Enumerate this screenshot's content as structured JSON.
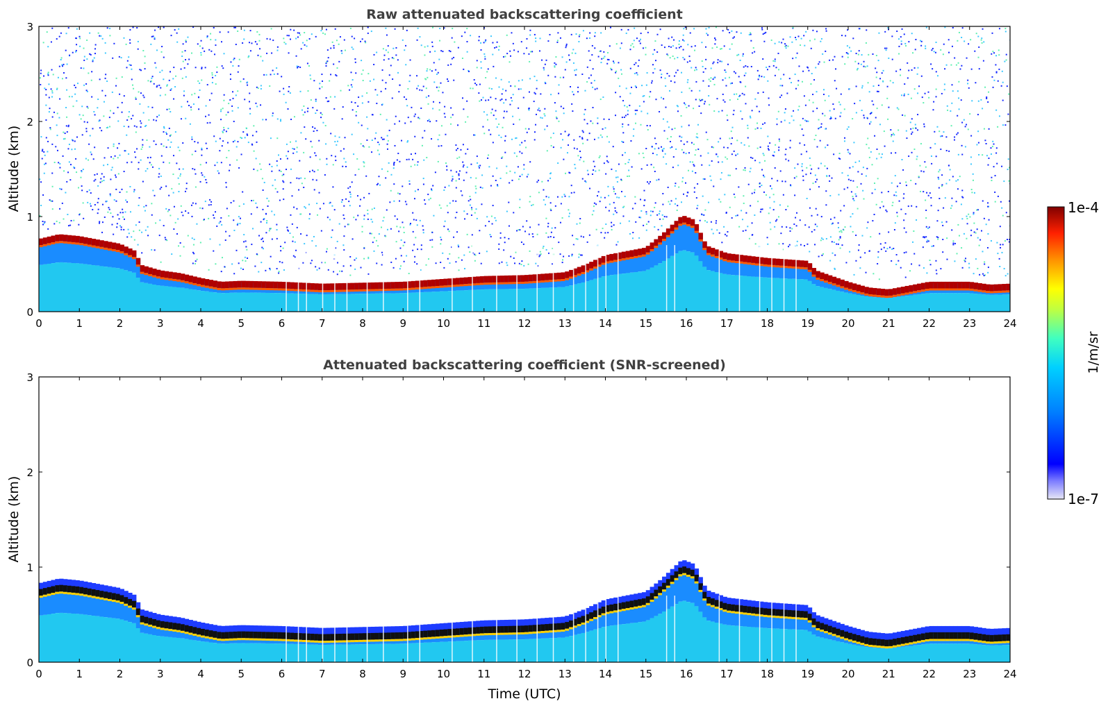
{
  "chart_data": [
    {
      "type": "heatmap",
      "title": "Raw attenuated backscattering coefficient",
      "xlabel": "",
      "ylabel": "Altitude (km)",
      "xlim": [
        0,
        24
      ],
      "ylim": [
        0,
        3
      ],
      "xticks": [
        "0",
        "1",
        "2",
        "3",
        "4",
        "5",
        "6",
        "7",
        "8",
        "9",
        "10",
        "11",
        "12",
        "13",
        "14",
        "15",
        "16",
        "17",
        "18",
        "19",
        "20",
        "21",
        "22",
        "23",
        "24"
      ],
      "yticks": [
        "0",
        "1",
        "2",
        "3"
      ],
      "screened": false,
      "layer_top_km": [
        [
          0,
          0.75
        ],
        [
          0.5,
          0.8
        ],
        [
          1,
          0.78
        ],
        [
          1.5,
          0.74
        ],
        [
          2,
          0.7
        ],
        [
          2.4,
          0.62
        ],
        [
          2.5,
          0.48
        ],
        [
          3,
          0.42
        ],
        [
          3.5,
          0.39
        ],
        [
          4,
          0.34
        ],
        [
          4.5,
          0.3
        ],
        [
          5,
          0.31
        ],
        [
          6,
          0.3
        ],
        [
          7,
          0.28
        ],
        [
          8,
          0.29
        ],
        [
          9,
          0.3
        ],
        [
          10,
          0.33
        ],
        [
          11,
          0.36
        ],
        [
          12,
          0.37
        ],
        [
          13,
          0.4
        ],
        [
          13.5,
          0.48
        ],
        [
          14,
          0.58
        ],
        [
          14.5,
          0.62
        ],
        [
          15,
          0.66
        ],
        [
          15.4,
          0.8
        ],
        [
          15.9,
          1.0
        ],
        [
          16.2,
          0.95
        ],
        [
          16.5,
          0.68
        ],
        [
          17,
          0.6
        ],
        [
          18,
          0.55
        ],
        [
          19,
          0.52
        ],
        [
          19.2,
          0.42
        ],
        [
          20,
          0.3
        ],
        [
          20.5,
          0.24
        ],
        [
          21,
          0.22
        ],
        [
          21.5,
          0.26
        ],
        [
          22,
          0.3
        ],
        [
          23,
          0.3
        ],
        [
          23.5,
          0.27
        ],
        [
          24,
          0.28
        ]
      ]
    },
    {
      "type": "heatmap",
      "title": "Attenuated backscattering coefficient (SNR-screened)",
      "xlabel": "Time (UTC)",
      "ylabel": "Altitude (km)",
      "xlim": [
        0,
        24
      ],
      "ylim": [
        0,
        3
      ],
      "xticks": [
        "0",
        "1",
        "2",
        "3",
        "4",
        "5",
        "6",
        "7",
        "8",
        "9",
        "10",
        "11",
        "12",
        "13",
        "14",
        "15",
        "16",
        "17",
        "18",
        "19",
        "20",
        "21",
        "22",
        "23",
        "24"
      ],
      "yticks": [
        "0",
        "1",
        "2",
        "3"
      ],
      "screened": true,
      "layer_top_km": [
        [
          0,
          0.75
        ],
        [
          0.5,
          0.8
        ],
        [
          1,
          0.78
        ],
        [
          1.5,
          0.74
        ],
        [
          2,
          0.7
        ],
        [
          2.4,
          0.62
        ],
        [
          2.5,
          0.48
        ],
        [
          3,
          0.42
        ],
        [
          3.5,
          0.39
        ],
        [
          4,
          0.34
        ],
        [
          4.5,
          0.3
        ],
        [
          5,
          0.31
        ],
        [
          6,
          0.3
        ],
        [
          7,
          0.28
        ],
        [
          8,
          0.29
        ],
        [
          9,
          0.3
        ],
        [
          10,
          0.33
        ],
        [
          11,
          0.36
        ],
        [
          12,
          0.37
        ],
        [
          13,
          0.4
        ],
        [
          13.5,
          0.48
        ],
        [
          14,
          0.58
        ],
        [
          14.5,
          0.62
        ],
        [
          15,
          0.66
        ],
        [
          15.4,
          0.8
        ],
        [
          15.9,
          1.0
        ],
        [
          16.2,
          0.95
        ],
        [
          16.5,
          0.68
        ],
        [
          17,
          0.6
        ],
        [
          18,
          0.55
        ],
        [
          19,
          0.52
        ],
        [
          19.2,
          0.42
        ],
        [
          20,
          0.3
        ],
        [
          20.5,
          0.24
        ],
        [
          21,
          0.22
        ],
        [
          21.5,
          0.26
        ],
        [
          22,
          0.3
        ],
        [
          23,
          0.3
        ],
        [
          23.5,
          0.27
        ],
        [
          24,
          0.28
        ]
      ]
    }
  ],
  "colorbar": {
    "max_label": "1e-4",
    "min_label": "1e-7",
    "unit_label": "1/m/sr",
    "colors": [
      "#e6e6f5",
      "#0000ff",
      "#0064ff",
      "#00c8ff",
      "#40ffc0",
      "#c0ff40",
      "#ffff00",
      "#ff9000",
      "#ff2000",
      "#800000"
    ]
  }
}
